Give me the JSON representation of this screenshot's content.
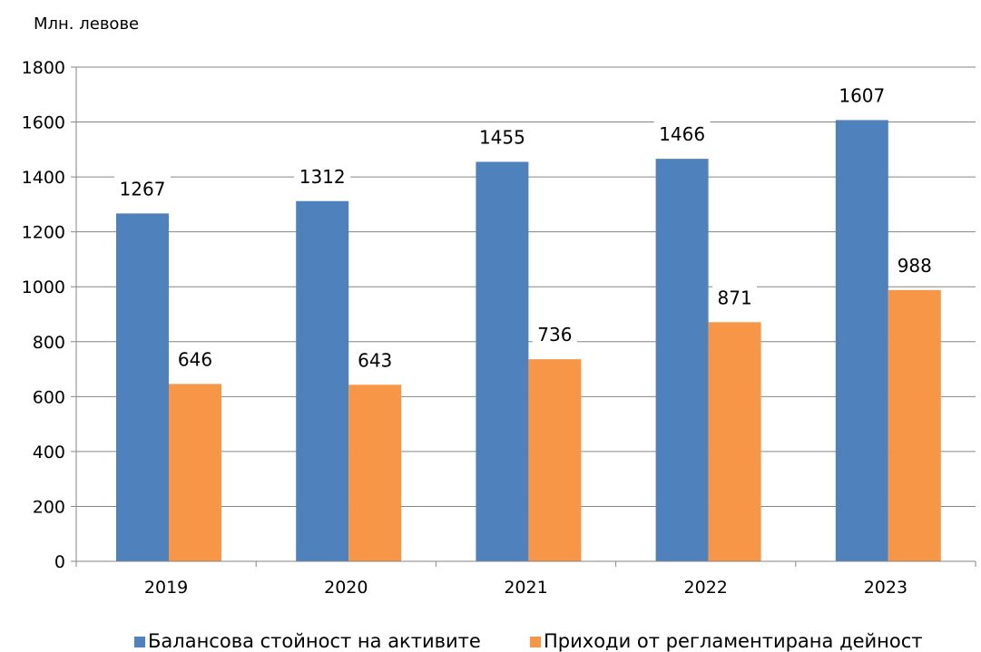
{
  "chart_data": {
    "type": "bar",
    "ylabel": "Млн. левове",
    "categories": [
      "2019",
      "2020",
      "2021",
      "2022",
      "2023"
    ],
    "series": [
      {
        "name": "Балансова стойност на активите",
        "values": [
          1267,
          1312,
          1455,
          1466,
          1607
        ],
        "color": "#4f81bd"
      },
      {
        "name": "Приходи от регламентирана дейност",
        "values": [
          646,
          643,
          736,
          871,
          988
        ],
        "color": "#f79646"
      }
    ],
    "ylim": [
      0,
      1800
    ],
    "yticks": [
      0,
      200,
      400,
      600,
      800,
      1000,
      1200,
      1400,
      1600,
      1800
    ],
    "grid": true,
    "legend_position": "bottom"
  }
}
